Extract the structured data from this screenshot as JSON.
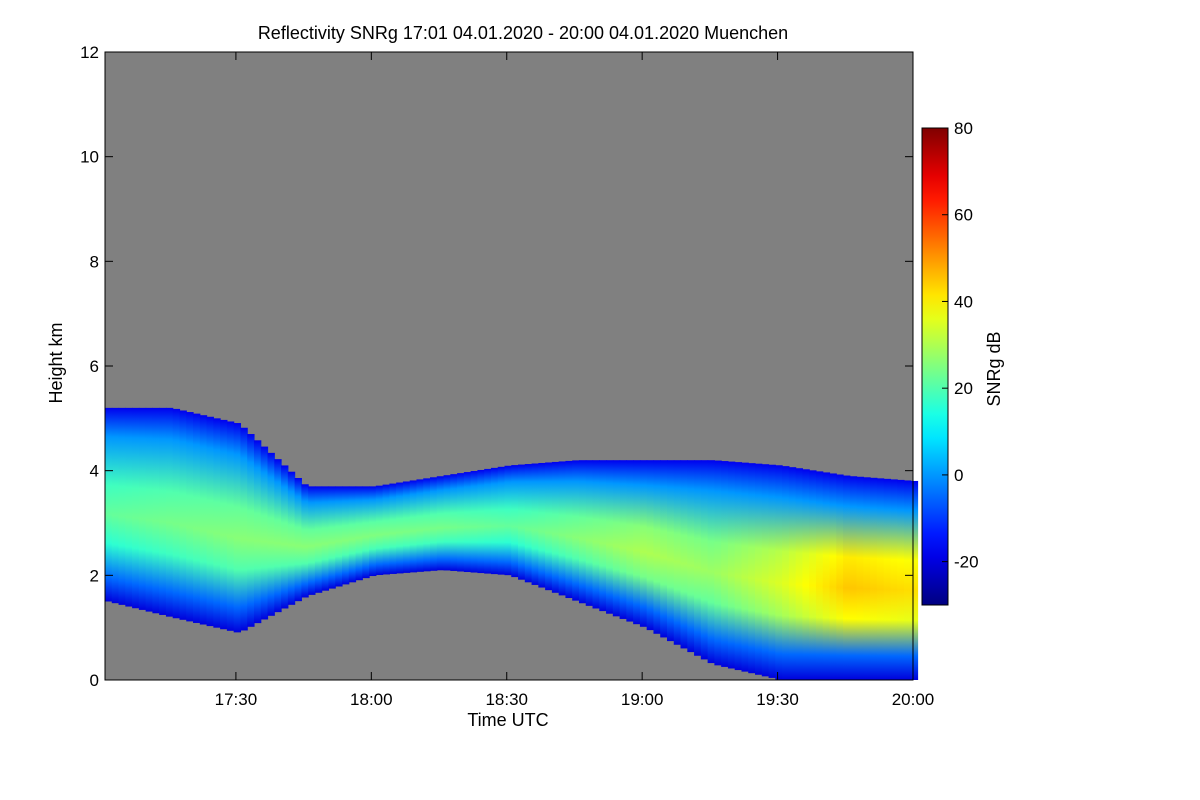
{
  "chart_data": {
    "type": "heatmap",
    "title": "Reflectivity SNRg   17:01 04.01.2020 - 20:00 04.01.2020 Muenchen",
    "xlabel": "Time UTC",
    "ylabel": "Height km",
    "xlim": [
      "17:01",
      "20:00"
    ],
    "ylim": [
      0,
      12
    ],
    "x_ticks": [
      "17:30",
      "18:00",
      "18:30",
      "19:00",
      "19:30",
      "20:00"
    ],
    "y_ticks": [
      "0",
      "2",
      "4",
      "6",
      "8",
      "10",
      "12"
    ],
    "colorbar": {
      "label": "SNRg dB",
      "range": [
        -30,
        80
      ],
      "ticks": [
        "-20",
        "0",
        "20",
        "40",
        "60",
        "80"
      ],
      "colormap": "jet"
    },
    "background_color": "#808080",
    "cloud_layer": {
      "description_points_time": [
        "17:01",
        "17:15",
        "17:30",
        "17:45",
        "18:00",
        "18:15",
        "18:30",
        "18:45",
        "19:00",
        "19:15",
        "19:30",
        "19:45",
        "20:00"
      ],
      "top_km": [
        5.2,
        5.2,
        4.9,
        3.7,
        3.7,
        3.9,
        4.1,
        4.2,
        4.2,
        4.2,
        4.1,
        3.9,
        3.8
      ],
      "base_km": [
        1.5,
        1.2,
        0.9,
        1.6,
        2.0,
        2.1,
        2.0,
        1.5,
        1.0,
        0.3,
        0.0,
        0.0,
        0.0
      ],
      "peak_snr_db": [
        22,
        24,
        26,
        26,
        25,
        24,
        22,
        26,
        30,
        28,
        35,
        45,
        42
      ]
    }
  }
}
